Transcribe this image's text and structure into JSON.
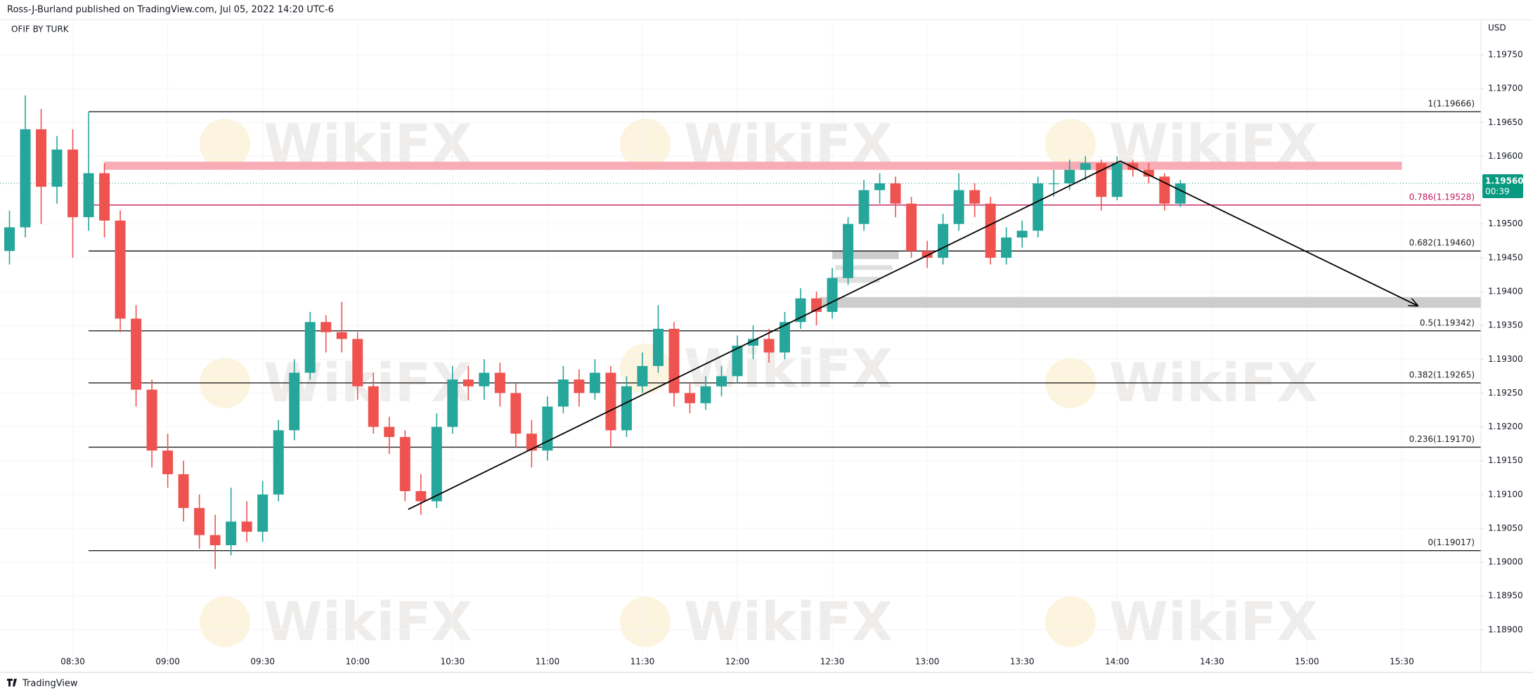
{
  "header": {
    "publisher": "Ross-J-Burland published on TradingView.com, Jul 05, 2022 14:20 UTC-6",
    "symbol": "OFIF BY TURK",
    "footer": "TradingView"
  },
  "chart_data": {
    "type": "candlestick",
    "currency": "USD",
    "watermark": "WikiFX",
    "up_color": "#26a69a",
    "down_color": "#ef5350",
    "x": [
      490,
      495,
      500,
      505,
      510,
      515,
      520,
      525,
      530,
      535,
      540,
      545,
      550,
      555,
      560,
      565,
      570,
      575,
      580,
      585,
      590,
      595,
      600,
      605,
      610,
      615,
      620,
      625,
      630,
      635,
      640,
      645,
      650,
      655,
      660,
      665,
      670,
      675,
      680,
      685,
      690,
      695,
      700,
      705,
      710,
      715,
      720,
      725,
      730,
      735,
      740,
      745,
      750,
      755,
      760,
      765,
      770,
      775,
      780,
      785,
      790,
      795,
      800,
      805,
      810,
      815,
      820,
      825,
      830,
      835,
      840,
      845,
      850,
      855,
      860
    ],
    "open": [
      1.1946,
      1.19495,
      1.1964,
      1.19555,
      1.1961,
      1.1951,
      1.19575,
      1.19505,
      1.1936,
      1.19255,
      1.19165,
      1.1913,
      1.1908,
      1.1904,
      1.19025,
      1.1906,
      1.19045,
      1.191,
      1.19195,
      1.1928,
      1.19355,
      1.1934,
      1.1933,
      1.1926,
      1.192,
      1.19185,
      1.19105,
      1.1909,
      1.192,
      1.1927,
      1.1926,
      1.1928,
      1.1925,
      1.1919,
      1.19165,
      1.1923,
      1.1927,
      1.1925,
      1.1928,
      1.19195,
      1.1926,
      1.1929,
      1.19345,
      1.1925,
      1.19235,
      1.1926,
      1.19275,
      1.1932,
      1.1933,
      1.1931,
      1.19355,
      1.1939,
      1.1937,
      1.1942,
      1.195,
      1.1955,
      1.1956,
      1.1953,
      1.1946,
      1.1945,
      1.195,
      1.1955,
      1.1953,
      1.1945,
      1.1948,
      1.1949,
      1.1956,
      1.1956,
      1.1958,
      1.1959,
      1.1954,
      1.1959,
      1.1958,
      1.1957,
      1.1953
    ],
    "high": [
      1.1952,
      1.1969,
      1.1967,
      1.1963,
      1.1964,
      1.19665,
      1.1959,
      1.1952,
      1.1938,
      1.1927,
      1.1919,
      1.1915,
      1.191,
      1.1907,
      1.1911,
      1.1909,
      1.1912,
      1.1921,
      1.193,
      1.1937,
      1.19365,
      1.19385,
      1.1934,
      1.1928,
      1.19215,
      1.19195,
      1.1913,
      1.1922,
      1.1929,
      1.1929,
      1.193,
      1.19295,
      1.19265,
      1.1921,
      1.19245,
      1.1929,
      1.19285,
      1.193,
      1.1929,
      1.19275,
      1.1931,
      1.1938,
      1.19355,
      1.19265,
      1.19275,
      1.1929,
      1.19335,
      1.1935,
      1.19345,
      1.1937,
      1.19405,
      1.194,
      1.19435,
      1.1951,
      1.19565,
      1.19575,
      1.1957,
      1.1954,
      1.19475,
      1.19515,
      1.19575,
      1.1956,
      1.1954,
      1.19495,
      1.19505,
      1.1957,
      1.1958,
      1.19595,
      1.196,
      1.19595,
      1.196,
      1.19595,
      1.1959,
      1.19575,
      1.19565
    ],
    "low": [
      1.1944,
      1.1948,
      1.195,
      1.1953,
      1.1945,
      1.1949,
      1.1948,
      1.1934,
      1.1923,
      1.1914,
      1.1911,
      1.1906,
      1.1902,
      1.1899,
      1.1901,
      1.1903,
      1.1903,
      1.1909,
      1.1918,
      1.1927,
      1.1931,
      1.1931,
      1.1924,
      1.1919,
      1.1916,
      1.1909,
      1.1907,
      1.1908,
      1.1919,
      1.1924,
      1.1924,
      1.1923,
      1.1917,
      1.1914,
      1.1915,
      1.1922,
      1.1923,
      1.1924,
      1.1917,
      1.19185,
      1.1925,
      1.1928,
      1.1923,
      1.1922,
      1.19225,
      1.19245,
      1.19265,
      1.193,
      1.19295,
      1.193,
      1.19345,
      1.1935,
      1.1936,
      1.1941,
      1.1949,
      1.1953,
      1.1951,
      1.1945,
      1.19435,
      1.1944,
      1.1949,
      1.1951,
      1.1944,
      1.1944,
      1.19465,
      1.1948,
      1.1954,
      1.1955,
      1.19565,
      1.1952,
      1.19535,
      1.1957,
      1.1956,
      1.1952,
      1.19525
    ],
    "close": [
      1.19495,
      1.1964,
      1.19555,
      1.1961,
      1.1951,
      1.19575,
      1.19505,
      1.1936,
      1.19255,
      1.19165,
      1.1913,
      1.1908,
      1.1904,
      1.19025,
      1.1906,
      1.19045,
      1.191,
      1.19195,
      1.1928,
      1.19355,
      1.1934,
      1.1933,
      1.1926,
      1.192,
      1.19185,
      1.19105,
      1.1909,
      1.192,
      1.1927,
      1.1926,
      1.1928,
      1.1925,
      1.1919,
      1.19165,
      1.1923,
      1.1927,
      1.1925,
      1.1928,
      1.19195,
      1.1926,
      1.1929,
      1.19345,
      1.1925,
      1.19235,
      1.1926,
      1.19275,
      1.1932,
      1.1933,
      1.1931,
      1.19355,
      1.1939,
      1.1937,
      1.1942,
      1.195,
      1.1955,
      1.1956,
      1.1953,
      1.1946,
      1.1945,
      1.195,
      1.1955,
      1.1953,
      1.1945,
      1.1948,
      1.1949,
      1.1956,
      1.1956,
      1.1958,
      1.1959,
      1.1954,
      1.1959,
      1.1958,
      1.1957,
      1.1953,
      1.1956
    ],
    "xlim": [
      487,
      955
    ],
    "xticks": [
      {
        "value": 510,
        "label": "08:30"
      },
      {
        "value": 540,
        "label": "09:00"
      },
      {
        "value": 570,
        "label": "09:30"
      },
      {
        "value": 600,
        "label": "10:00"
      },
      {
        "value": 630,
        "label": "10:30"
      },
      {
        "value": 660,
        "label": "11:00"
      },
      {
        "value": 690,
        "label": "11:30"
      },
      {
        "value": 720,
        "label": "12:00"
      },
      {
        "value": 750,
        "label": "12:30"
      },
      {
        "value": 780,
        "label": "13:00"
      },
      {
        "value": 810,
        "label": "13:30"
      },
      {
        "value": 840,
        "label": "14:00"
      },
      {
        "value": 870,
        "label": "14:30"
      },
      {
        "value": 900,
        "label": "15:00"
      },
      {
        "value": 930,
        "label": "15:30"
      }
    ],
    "ylim": [
      1.18864,
      1.19802
    ],
    "yticks": [
      {
        "value": 1.1975,
        "label": "1.19750"
      },
      {
        "value": 1.197,
        "label": "1.19700"
      },
      {
        "value": 1.1965,
        "label": "1.19650"
      },
      {
        "value": 1.196,
        "label": "1.19600"
      },
      {
        "value": 1.195,
        "label": "1.19500"
      },
      {
        "value": 1.1945,
        "label": "1.19450"
      },
      {
        "value": 1.194,
        "label": "1.19400"
      },
      {
        "value": 1.1935,
        "label": "1.19350"
      },
      {
        "value": 1.193,
        "label": "1.19300"
      },
      {
        "value": 1.1925,
        "label": "1.19250"
      },
      {
        "value": 1.192,
        "label": "1.19200"
      },
      {
        "value": 1.1915,
        "label": "1.19150"
      },
      {
        "value": 1.191,
        "label": "1.19100"
      },
      {
        "value": 1.1905,
        "label": "1.19050"
      },
      {
        "value": 1.19,
        "label": "1.19000"
      },
      {
        "value": 1.1895,
        "label": "1.18950"
      },
      {
        "value": 1.189,
        "label": "1.18900"
      }
    ],
    "grid": true,
    "fib_x": [
      515,
      955
    ],
    "fib_levels": [
      {
        "value": 1.19666,
        "label": "1(1.19666)",
        "color": "#222222"
      },
      {
        "value": 1.19528,
        "label": "0.786(1.19528)",
        "color": "#c2185b"
      },
      {
        "value": 1.1946,
        "label": "0.682(1.19460)",
        "color": "#222222"
      },
      {
        "value": 1.19342,
        "label": "0.5(1.19342)",
        "color": "#222222"
      },
      {
        "value": 1.19265,
        "label": "0.382(1.19265)",
        "color": "#222222"
      },
      {
        "value": 1.1917,
        "label": "0.236(1.19170)",
        "color": "#222222"
      },
      {
        "value": 1.19017,
        "label": "0(1.19017)",
        "color": "#222222"
      }
    ],
    "zones": [
      {
        "low": 1.1958,
        "high": 1.19592,
        "start": 520,
        "end": 930,
        "color": "#f7a3ae"
      },
      {
        "low": 1.19376,
        "high": 1.19392,
        "start": 746,
        "end": 955,
        "color": "#c8c8c8"
      },
      {
        "low": 1.19448,
        "high": 1.1946,
        "start": 750,
        "end": 771,
        "color": "#c8c8c8"
      },
      {
        "low": 1.19432,
        "high": 1.19439,
        "start": 751,
        "end": 769,
        "color": "#dcdcdc"
      },
      {
        "low": 1.19413,
        "high": 1.19422,
        "start": 749,
        "end": 765,
        "color": "#dcdcdc"
      }
    ],
    "trendlines": [
      {
        "x": [
          616,
          841
        ],
        "y": [
          1.19078,
          1.19593
        ],
        "arrow": false
      },
      {
        "x": [
          841,
          935
        ],
        "y": [
          1.19593,
          1.19379
        ],
        "arrow": true
      }
    ],
    "last_price": {
      "value": 1.1956,
      "label": "1.19560",
      "countdown": "00:39",
      "color": "#089981"
    }
  }
}
